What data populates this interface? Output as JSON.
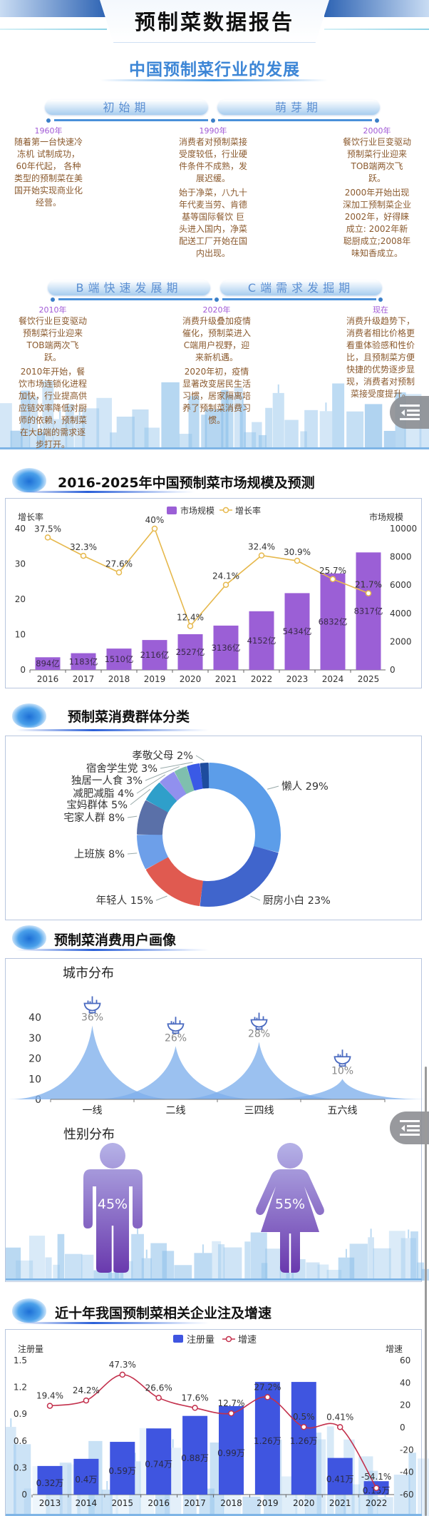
{
  "header": {
    "title": "预制菜数据报告"
  },
  "development": {
    "title": "中国预制菜行业的发展",
    "phases": [
      "初始期",
      "萌芽期",
      "B端快速发展期",
      "C端需求发掘期"
    ],
    "milestones": [
      {
        "year": "1960年",
        "paragraphs": [
          "随着第一台快速冷冻机 试制成功，60年代起， 各种类型的预制菜在美 国开始实现商业化经营。"
        ]
      },
      {
        "year": "1990年",
        "paragraphs": [
          "消费者对预制菜接受度较低，行业硬件条件不成熟，发展迟缓。",
          "始于净菜，八九十年代麦当劳、肯德基等国际餐饮 巨头进入国内，净菜配送工厂开始在国内出现。"
        ]
      },
      {
        "year": "2000年",
        "paragraphs": [
          "餐饮行业巨变驱动预制菜行业迎来TOB端两次飞跃。",
          "2000年开始出现深加工预制菜企业2002年，好得睐成立: 2002年新聪厨成立;2008年味知香成立。"
        ]
      },
      {
        "year": "2010年",
        "paragraphs": [
          "餐饮行业巨变驱动预制菜行业迎来TOB端两次飞跃。",
          "2010年开始，餐饮市场连锁化进程加快，行业提高供应链效率降低对厨师的依赖，预制菜在大B端的需求逐步打开。"
        ]
      },
      {
        "year": "2020年",
        "paragraphs": [
          "消费升级叠加疫情催化，预制菜进入C端用户视野，迎来新机遇。",
          "2020年初，疫情显著改变居民生活习惯，居家隔离培养了预制菜消费习惯。"
        ]
      },
      {
        "year": "现在",
        "paragraphs": [
          "消费升级趋势下，消费者相比价格更看重体验感和性价比，且预制菜方便快捷的优势逐步显现，消费者对预制菜接受度提升。"
        ]
      }
    ]
  },
  "market": {
    "title": "2016-2025年中国预制菜市场规模及预测",
    "chart_data": {
      "type": "bar",
      "categories": [
        "2016",
        "2017",
        "2018",
        "2019",
        "2020",
        "2021",
        "2022",
        "2023",
        "2024",
        "2025"
      ],
      "series": [
        {
          "name": "市场规模",
          "type": "bar",
          "axis": "right",
          "values": [
            894,
            1183,
            1510,
            2116,
            2527,
            3136,
            4152,
            5434,
            6832,
            8317
          ],
          "labels": [
            "894亿",
            "1183亿",
            "1510亿",
            "2116亿",
            "2527亿",
            "3136亿",
            "4152亿",
            "5434亿",
            "6832亿",
            "8317亿"
          ],
          "color": "#9b5fd6"
        },
        {
          "name": "增长率",
          "type": "line",
          "axis": "left",
          "values": [
            37.5,
            32.3,
            27.6,
            40,
            12.4,
            24.1,
            32.4,
            30.9,
            25.7,
            21.7
          ],
          "labels": [
            "37.5%",
            "32.3%",
            "27.6%",
            "40%",
            "12.4%",
            "24.1%",
            "32.4%",
            "30.9%",
            "25.7%",
            "21.7%"
          ],
          "color": "#e6b84c"
        }
      ],
      "ylabel_left": "增长率",
      "ylabel_right": "市场规模",
      "ylim_left": [
        0,
        40
      ],
      "yticks_left": [
        "0",
        "10",
        "20",
        "30",
        "40"
      ],
      "ylim_right": [
        0,
        10000
      ],
      "yticks_right": [
        "0",
        "2000",
        "4000",
        "6000",
        "8000",
        "10000"
      ],
      "legend": "top-center",
      "grid": false
    }
  },
  "consumers": {
    "title": "预制菜消费群体分类",
    "chart_data": {
      "type": "pie",
      "donut": true,
      "slices": [
        {
          "label": "懒人",
          "value": 29,
          "text": "懒人 29%",
          "color": "#5c9de9"
        },
        {
          "label": "厨房小白",
          "value": 23,
          "text": "厨房小白 23%",
          "color": "#4065cc"
        },
        {
          "label": "年轻人",
          "value": 15,
          "text": "年轻人 15%",
          "color": "#e05a50"
        },
        {
          "label": "上班族",
          "value": 8,
          "text": "上班族 8%",
          "color": "#6d9fe9"
        },
        {
          "label": "宅家人群",
          "value": 8,
          "text": "宅家人群 8%",
          "color": "#5a70a8"
        },
        {
          "label": "宝妈群体",
          "value": 5,
          "text": "宝妈群体 5%",
          "color": "#2f9fca"
        },
        {
          "label": "减肥减脂",
          "value": 4,
          "text": "减肥减脂 4%",
          "color": "#9190ee"
        },
        {
          "label": "独居一人食",
          "value": 3,
          "text": "独居一人食 3%",
          "color": "#7fbfae"
        },
        {
          "label": "宿舍学生党",
          "value": 3,
          "text": "宿舍学生党 3%",
          "color": "#3a5ae6"
        },
        {
          "label": "孝敬父母",
          "value": 2,
          "text": "孝敬父母 2%",
          "color": "#1e4c9e"
        }
      ]
    }
  },
  "portrait": {
    "title": "预制菜消费用户画像",
    "city": {
      "title": "城市分布",
      "chart_data": {
        "type": "area",
        "categories": [
          "一线",
          "二线",
          "三四线",
          "五六线"
        ],
        "values": [
          36,
          26,
          28,
          10
        ],
        "labels": [
          "36%",
          "26%",
          "28%",
          "10%"
        ],
        "ylim": [
          0,
          40
        ],
        "yticks": [
          "0",
          "10",
          "20",
          "30",
          "40"
        ],
        "color": "#7fb0ec",
        "marker_icon": "bowl-icon"
      }
    },
    "gender": {
      "title": "性别分布",
      "male": {
        "label": "45%",
        "value": 45,
        "icon": "male-figure-icon"
      },
      "female": {
        "label": "55%",
        "value": 55,
        "icon": "female-figure-icon"
      },
      "color_top": "#b4b0e6",
      "color_bottom": "#6a3aae"
    }
  },
  "enterprise": {
    "title": "近十年我国预制菜相关企业注及增速",
    "chart_data": {
      "type": "bar",
      "categories": [
        "2013",
        "2014",
        "2015",
        "2016",
        "2017",
        "2018",
        "2019",
        "2020",
        "2021",
        "2022"
      ],
      "series": [
        {
          "name": "注册量",
          "type": "bar",
          "axis": "left",
          "values": [
            0.32,
            0.4,
            0.59,
            0.74,
            0.88,
            0.99,
            1.26,
            1.26,
            0.41,
            0.15
          ],
          "labels": [
            "0.32万",
            "0.4万",
            "0.59万",
            "0.74万",
            "0.88万",
            "0.99万",
            "1.26万",
            "1.26万",
            "0.41万",
            "0.15万"
          ],
          "color": "#3f55e0"
        },
        {
          "name": "增速",
          "type": "line",
          "axis": "right",
          "smooth": true,
          "values": [
            19.4,
            24.2,
            47.3,
            26.6,
            17.6,
            12.7,
            27.2,
            0.5,
            0.41,
            -54.1
          ],
          "labels": [
            "19.4%",
            "24.2%",
            "47.3%",
            "26.6%",
            "17.6%",
            "12.7%",
            "27.2%",
            "0.5%",
            "0.41%",
            "-54.1%"
          ],
          "color": "#c3304c"
        }
      ],
      "ylabel_left": "注册量",
      "ylabel_right": "增速",
      "ylim_left": [
        0,
        1.5
      ],
      "yticks_left": [
        "0",
        "0.3",
        "0.6",
        "0.9",
        "1.2",
        "1.5"
      ],
      "ylim_right": [
        -60,
        60
      ],
      "yticks_right": [
        "-60",
        "-40",
        "-20",
        "0",
        "20",
        "40",
        "60"
      ],
      "legend": "top-center",
      "grid": false
    }
  }
}
